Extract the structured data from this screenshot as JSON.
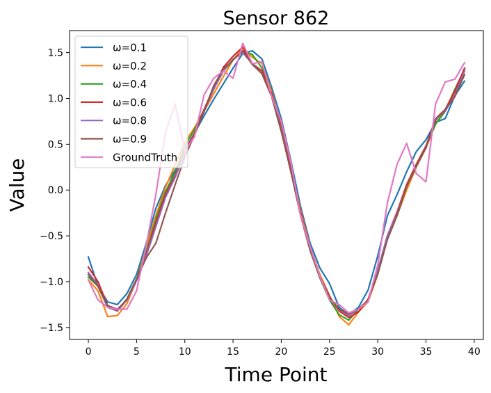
{
  "chart_data": {
    "type": "line",
    "title": "Sensor 862",
    "xlabel": "Time Point",
    "ylabel": "Value",
    "xlim": [
      -1.95,
      40.95
    ],
    "ylim": [
      -1.63,
      1.74
    ],
    "xticks": [
      0,
      5,
      10,
      15,
      20,
      25,
      30,
      35,
      40
    ],
    "xtick_labels": [
      "0",
      "5",
      "10",
      "15",
      "20",
      "25",
      "30",
      "35",
      "40"
    ],
    "yticks": [
      -1.5,
      -1.0,
      -0.5,
      0.0,
      0.5,
      1.0,
      1.5
    ],
    "ytick_labels": [
      "−1.5",
      "−1.0",
      "−0.5",
      "0.0",
      "0.5",
      "1.0",
      "1.5"
    ],
    "legend_position": "upper-left",
    "x": [
      0,
      1,
      2,
      3,
      4,
      5,
      6,
      7,
      8,
      9,
      10,
      11,
      12,
      13,
      14,
      15,
      16,
      17,
      18,
      19,
      20,
      21,
      22,
      23,
      24,
      25,
      26,
      27,
      28,
      29,
      30,
      31,
      32,
      33,
      34,
      35,
      36,
      37,
      38,
      39
    ],
    "series": [
      {
        "name": "ω=0.1",
        "color": "#1f77b4",
        "values": [
          -0.73,
          -1.05,
          -1.22,
          -1.25,
          -1.13,
          -0.92,
          -0.58,
          -0.2,
          0.05,
          0.22,
          0.44,
          0.62,
          0.81,
          0.99,
          1.16,
          1.33,
          1.49,
          1.52,
          1.43,
          1.12,
          0.78,
          0.32,
          -0.18,
          -0.58,
          -0.85,
          -1.02,
          -1.28,
          -1.36,
          -1.28,
          -1.09,
          -0.72,
          -0.28,
          -0.05,
          0.2,
          0.42,
          0.55,
          0.74,
          0.78,
          1.03,
          1.19
        ]
      },
      {
        "name": "ω=0.2",
        "color": "#ff7f0e",
        "values": [
          -0.98,
          -1.1,
          -1.38,
          -1.37,
          -1.24,
          -0.98,
          -0.63,
          -0.28,
          0.03,
          0.28,
          0.52,
          0.68,
          0.86,
          1.05,
          1.24,
          1.42,
          1.55,
          1.45,
          1.38,
          1.07,
          0.7,
          0.23,
          -0.22,
          -0.62,
          -0.92,
          -1.15,
          -1.38,
          -1.47,
          -1.33,
          -1.22,
          -0.92,
          -0.52,
          -0.28,
          0.0,
          0.25,
          0.46,
          0.72,
          0.86,
          1.1,
          1.3
        ]
      },
      {
        "name": "ω=0.4",
        "color": "#2ca02c",
        "values": [
          -0.95,
          -1.05,
          -1.28,
          -1.32,
          -1.19,
          -0.97,
          -0.68,
          -0.32,
          -0.02,
          0.2,
          0.48,
          0.66,
          0.88,
          1.1,
          1.3,
          1.42,
          1.52,
          1.48,
          1.33,
          1.04,
          0.68,
          0.2,
          -0.25,
          -0.66,
          -0.96,
          -1.2,
          -1.36,
          -1.42,
          -1.3,
          -1.2,
          -0.9,
          -0.52,
          -0.25,
          0.05,
          0.28,
          0.48,
          0.72,
          0.86,
          1.1,
          1.32
        ]
      },
      {
        "name": "ω=0.6",
        "color": "#d62728",
        "values": [
          -0.84,
          -1.0,
          -1.26,
          -1.3,
          -1.2,
          -0.98,
          -0.7,
          -0.36,
          -0.05,
          0.16,
          0.42,
          0.62,
          0.88,
          1.12,
          1.34,
          1.46,
          1.56,
          1.38,
          1.3,
          1.05,
          0.68,
          0.22,
          -0.24,
          -0.64,
          -0.94,
          -1.16,
          -1.32,
          -1.39,
          -1.33,
          -1.19,
          -0.88,
          -0.5,
          -0.24,
          0.06,
          0.28,
          0.48,
          0.78,
          0.88,
          1.08,
          1.33
        ]
      },
      {
        "name": "ω=0.8",
        "color": "#9467bd",
        "values": [
          -0.9,
          -1.04,
          -1.28,
          -1.32,
          -1.2,
          -0.99,
          -0.72,
          -0.4,
          -0.08,
          0.14,
          0.4,
          0.6,
          0.86,
          1.1,
          1.3,
          1.43,
          1.5,
          1.38,
          1.27,
          1.02,
          0.66,
          0.2,
          -0.26,
          -0.66,
          -0.95,
          -1.18,
          -1.3,
          -1.37,
          -1.3,
          -1.2,
          -0.88,
          -0.5,
          -0.26,
          0.04,
          0.26,
          0.46,
          0.78,
          0.86,
          1.04,
          1.3
        ]
      },
      {
        "name": "ω=0.9",
        "color": "#8c564b",
        "values": [
          -0.92,
          -1.05,
          -1.26,
          -1.31,
          -1.19,
          -0.97,
          -0.74,
          -0.58,
          -0.25,
          0.06,
          0.36,
          0.6,
          0.86,
          1.14,
          1.32,
          1.42,
          1.52,
          1.37,
          1.27,
          1.02,
          0.64,
          0.2,
          -0.28,
          -0.66,
          -0.95,
          -1.17,
          -1.3,
          -1.35,
          -1.3,
          -1.2,
          -0.92,
          -0.54,
          -0.28,
          0.04,
          0.26,
          0.46,
          0.76,
          0.88,
          1.02,
          1.26
        ]
      },
      {
        "name": "GroundTruth",
        "color": "#e377c2",
        "values": [
          -0.98,
          -1.2,
          -1.28,
          -1.3,
          -1.3,
          -1.1,
          -0.6,
          -0.05,
          0.63,
          0.94,
          0.42,
          0.58,
          1.04,
          1.22,
          1.3,
          1.22,
          1.6,
          1.38,
          1.4,
          1.02,
          0.75,
          0.3,
          -0.28,
          -0.62,
          -0.94,
          -1.2,
          -1.25,
          -1.34,
          -1.3,
          -1.22,
          -0.82,
          -0.14,
          0.28,
          0.51,
          0.18,
          0.09,
          0.94,
          1.18,
          1.21,
          1.39
        ]
      }
    ]
  }
}
